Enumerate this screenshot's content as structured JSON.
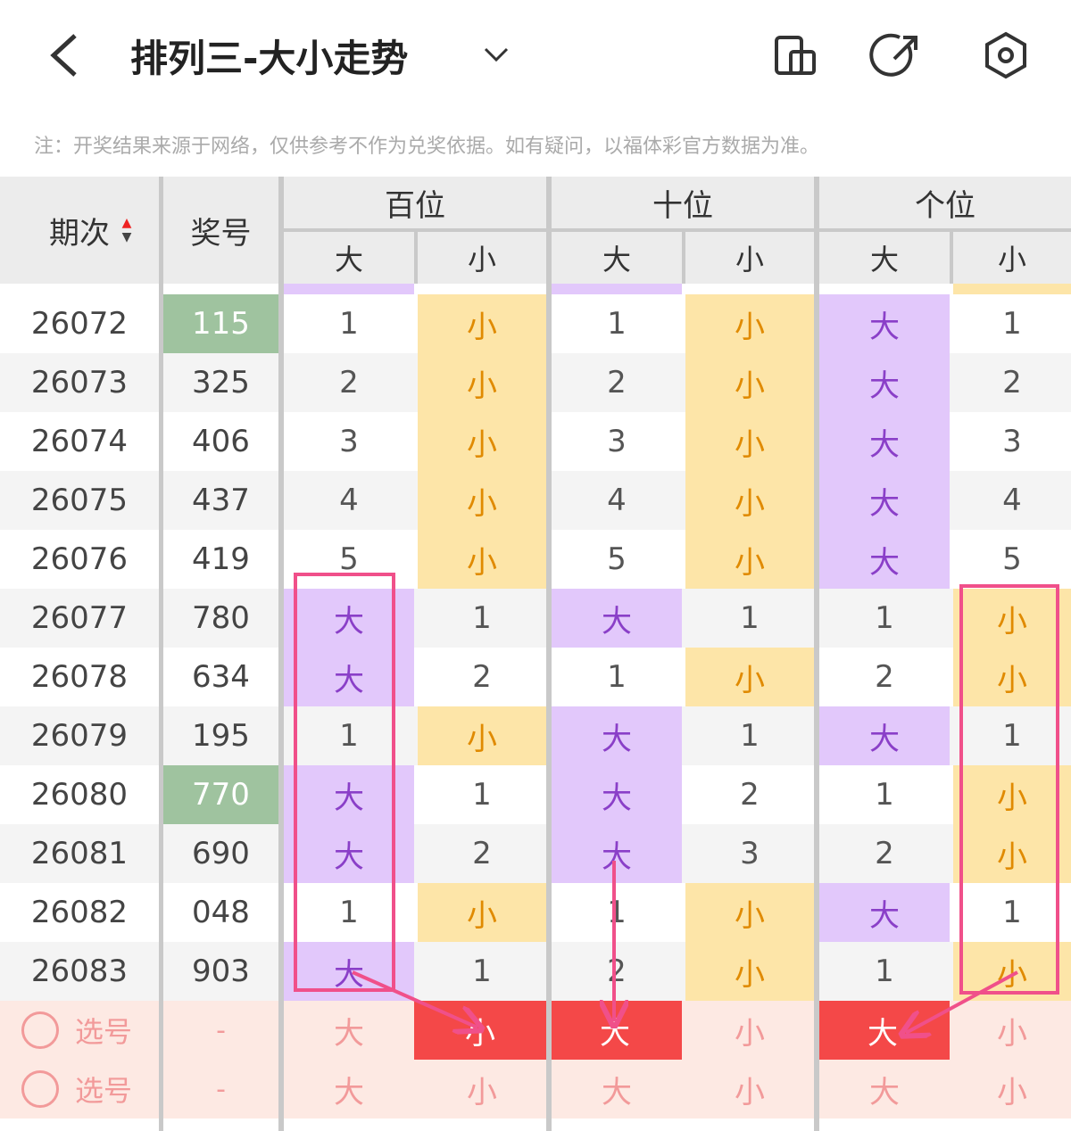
{
  "header": {
    "title": "排列三-大小走势",
    "note": "注：开奖结果来源于网络，仅供参考不作为兑奖依据。如有疑问，以福体彩官方数据为准。"
  },
  "table": {
    "headers": {
      "period": "期次",
      "number": "奖号",
      "groups": [
        "百位",
        "十位",
        "个位"
      ],
      "sub": [
        "大",
        "小",
        "大",
        "小",
        "大",
        "小"
      ]
    },
    "rows": [
      {
        "period": "26072",
        "number": "115",
        "cells": [
          "1",
          "小",
          "1",
          "小",
          "大",
          "1"
        ]
      },
      {
        "period": "26073",
        "number": "325",
        "cells": [
          "2",
          "小",
          "2",
          "小",
          "大",
          "2"
        ]
      },
      {
        "period": "26074",
        "number": "406",
        "cells": [
          "3",
          "小",
          "3",
          "小",
          "大",
          "3"
        ]
      },
      {
        "period": "26075",
        "number": "437",
        "cells": [
          "4",
          "小",
          "4",
          "小",
          "大",
          "4"
        ]
      },
      {
        "period": "26076",
        "number": "419",
        "cells": [
          "5",
          "小",
          "5",
          "小",
          "大",
          "5"
        ]
      },
      {
        "period": "26077",
        "number": "780",
        "cells": [
          "大",
          "1",
          "大",
          "1",
          "1",
          "小"
        ]
      },
      {
        "period": "26078",
        "number": "634",
        "cells": [
          "大",
          "2",
          "1",
          "小",
          "2",
          "小"
        ]
      },
      {
        "period": "26079",
        "number": "195",
        "cells": [
          "1",
          "小",
          "大",
          "1",
          "大",
          "1"
        ]
      },
      {
        "period": "26080",
        "number": "770",
        "cells": [
          "大",
          "1",
          "大",
          "2",
          "1",
          "小"
        ]
      },
      {
        "period": "26081",
        "number": "690",
        "cells": [
          "大",
          "2",
          "大",
          "3",
          "2",
          "小"
        ]
      },
      {
        "period": "26082",
        "number": "048",
        "cells": [
          "1",
          "小",
          "1",
          "小",
          "大",
          "1"
        ]
      },
      {
        "period": "26083",
        "number": "903",
        "cells": [
          "大",
          "1",
          "2",
          "小",
          "1",
          "小"
        ]
      }
    ],
    "select_rows": [
      {
        "label": "选号",
        "number": "-",
        "cells": [
          "大",
          "小",
          "大",
          "小",
          "大",
          "小"
        ]
      },
      {
        "label": "选号",
        "number": "-",
        "cells": [
          "大",
          "小",
          "大",
          "小",
          "大",
          "小"
        ]
      }
    ]
  }
}
